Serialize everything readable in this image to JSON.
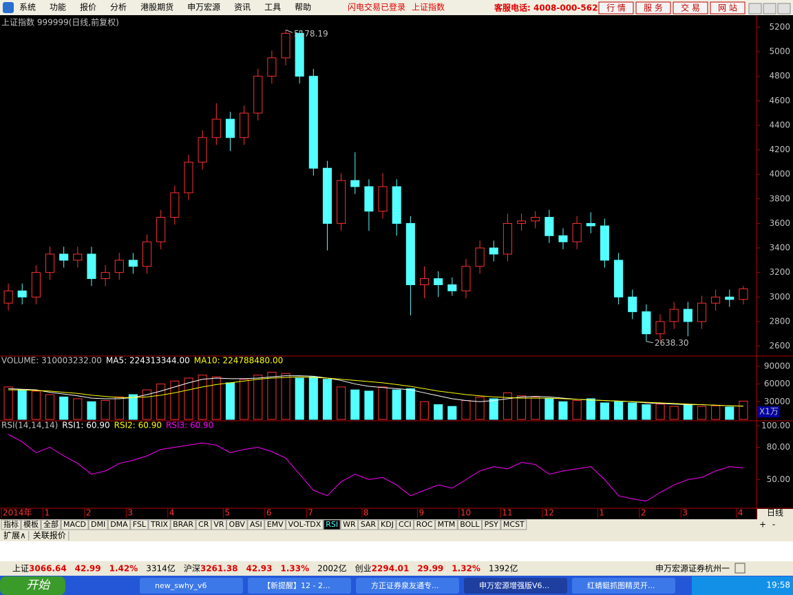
{
  "menu": {
    "items": [
      "系统",
      "功能",
      "报价",
      "分析",
      "港股期货",
      "申万宏源",
      "资讯",
      "工具",
      "帮助"
    ],
    "status": "闪电交易已登录",
    "current": "上证指数",
    "hotline": "客服电话: 4008-000-562",
    "buttons": [
      "行 情",
      "服 务",
      "交 易",
      "网 站"
    ]
  },
  "chart_data": [
    {
      "type": "candlestick",
      "title": "上证指数 999999(日线,前复权)",
      "up_color": "#ff3232",
      "down_color": "#54ffff",
      "open": [
        2950,
        3050,
        3000,
        3200,
        3350,
        3300,
        3350,
        3150,
        3200,
        3300,
        3250,
        3450,
        3650,
        3850,
        4100,
        4300,
        4450,
        4300,
        4500,
        4800,
        4950,
        5150,
        4800,
        4050,
        3600,
        3950,
        3900,
        3700,
        3900,
        3600,
        3100,
        3150,
        3100,
        3050,
        3250,
        3400,
        3350,
        3600,
        3620,
        3650,
        3500,
        3450,
        3600,
        3580,
        3300,
        3000,
        2880,
        2700,
        2800,
        2900,
        2800,
        2950,
        3000,
        2980
      ],
      "high": [
        3110,
        3110,
        3260,
        3410,
        3410,
        3410,
        3410,
        3260,
        3360,
        3360,
        3510,
        3710,
        3910,
        4160,
        4360,
        4580,
        4510,
        4560,
        4860,
        5010,
        5178.19,
        5176,
        4860,
        4110,
        4010,
        4180,
        3960,
        4010,
        3960,
        3660,
        3250,
        3210,
        3160,
        3310,
        3460,
        3460,
        3680,
        3680,
        3700,
        3710,
        3560,
        3660,
        3690,
        3640,
        3360,
        3060,
        2940,
        2860,
        2960,
        2960,
        3010,
        3060,
        3060,
        3090
      ],
      "low": [
        2890,
        2940,
        2940,
        3140,
        3240,
        3240,
        3090,
        3090,
        3140,
        3190,
        3190,
        3390,
        3590,
        3790,
        4040,
        4240,
        4190,
        4240,
        4440,
        4740,
        4890,
        4740,
        3990,
        3380,
        3540,
        3840,
        3540,
        3640,
        3500,
        2850,
        2990,
        3000,
        3010,
        2990,
        3190,
        3290,
        3290,
        3540,
        3560,
        3440,
        3390,
        3390,
        3520,
        3240,
        2940,
        2820,
        2638.3,
        2640,
        2740,
        2680,
        2740,
        2890,
        2920,
        2940
      ],
      "close": [
        3050,
        3000,
        3200,
        3350,
        3300,
        3350,
        3150,
        3200,
        3300,
        3250,
        3450,
        3650,
        3850,
        4100,
        4300,
        4450,
        4300,
        4500,
        4800,
        4950,
        5150,
        4800,
        4050,
        3600,
        3950,
        3900,
        3700,
        3900,
        3600,
        3100,
        3150,
        3100,
        3050,
        3250,
        3400,
        3350,
        3600,
        3620,
        3650,
        3500,
        3450,
        3600,
        3580,
        3300,
        3000,
        2880,
        2700,
        2800,
        2900,
        2800,
        2950,
        3000,
        2980,
        3066.64
      ],
      "high_label": "5178.19",
      "low_label": "2638.30",
      "xlim": [
        0,
        54
      ],
      "xticks": [
        {
          "value": 0,
          "label": "2014年"
        },
        {
          "value": 3,
          "label": "1"
        },
        {
          "value": 6,
          "label": "2"
        },
        {
          "value": 9,
          "label": "3"
        },
        {
          "value": 12,
          "label": "4"
        },
        {
          "value": 16,
          "label": "5"
        },
        {
          "value": 19,
          "label": "6"
        },
        {
          "value": 22,
          "label": "7"
        },
        {
          "value": 26,
          "label": "8"
        },
        {
          "value": 30,
          "label": "9"
        },
        {
          "value": 33,
          "label": "10"
        },
        {
          "value": 36,
          "label": "11"
        },
        {
          "value": 39,
          "label": "12"
        },
        {
          "value": 43,
          "label": "1"
        },
        {
          "value": 46,
          "label": "2"
        },
        {
          "value": 49,
          "label": "3"
        },
        {
          "value": 53,
          "label": "4"
        }
      ],
      "ylim": [
        2530,
        5270
      ],
      "yticks": [
        2600,
        2800,
        3000,
        3200,
        3400,
        3600,
        3800,
        4000,
        4200,
        4400,
        4600,
        4800,
        5000,
        5200
      ]
    },
    {
      "type": "bar",
      "y_unit": "X1万",
      "ylim": [
        0,
        105000
      ],
      "yticks": [
        30000,
        60000,
        90000
      ],
      "series": [
        {
          "label": "VOLUME: 310003232.00",
          "color": "#c0c0c0",
          "values": [
            55000,
            50000,
            48000,
            42000,
            38000,
            35000,
            30000,
            32000,
            38000,
            42000,
            50000,
            60000,
            65000,
            70000,
            75000,
            72000,
            62000,
            68000,
            75000,
            80000,
            78000,
            70000,
            72000,
            68000,
            55000,
            50000,
            48000,
            55000,
            50000,
            52000,
            30000,
            25000,
            22000,
            32000,
            38000,
            35000,
            45000,
            40000,
            38000,
            35000,
            30000,
            32000,
            35000,
            28000,
            30000,
            28000,
            25000,
            26000,
            22000,
            24000,
            22000,
            23000,
            21000,
            31000.3232
          ]
        },
        {
          "label": "MA5: 224313344.00",
          "color": "#ffffff",
          "values": [
            52000,
            51000,
            50000,
            46000,
            43000,
            40000,
            36000,
            35000,
            35000,
            37000,
            42000,
            48000,
            55000,
            62000,
            68000,
            70000,
            69000,
            69000,
            70000,
            72000,
            74000,
            74000,
            73000,
            70000,
            66000,
            60000,
            56000,
            54000,
            52000,
            50000,
            45000,
            40000,
            35000,
            32000,
            30000,
            32000,
            35000,
            38000,
            39000,
            38000,
            36000,
            34000,
            33000,
            32000,
            31000,
            30000,
            28000,
            27000,
            26000,
            25000,
            25000,
            24000,
            23000,
            22431.3344
          ]
        },
        {
          "label": "MA10: 224788480.00",
          "color": "#ffff00",
          "values": [
            50000,
            50000,
            49000,
            48000,
            46000,
            44000,
            41000,
            39000,
            37000,
            37000,
            38000,
            41000,
            45000,
            50000,
            55000,
            59000,
            62000,
            65000,
            68000,
            70000,
            71000,
            72000,
            71000,
            70000,
            68000,
            66000,
            64000,
            62000,
            59000,
            56000,
            52000,
            48000,
            45000,
            42000,
            40000,
            38000,
            37000,
            36000,
            36000,
            36000,
            35000,
            34000,
            33000,
            32000,
            31000,
            30000,
            29000,
            28000,
            27000,
            26000,
            25000,
            24000,
            23000,
            22478.848
          ]
        }
      ]
    },
    {
      "type": "line",
      "title": "RSI(14,14,14)",
      "legend_labels": [
        {
          "text": "RSI1: 60.90",
          "color": "#ffffff"
        },
        {
          "text": "RSI2: 60.90",
          "color": "#ffff00"
        },
        {
          "text": "RSI3: 60.90",
          "color": "#ff00ff"
        }
      ],
      "color": "#ff00ff",
      "ylim": [
        24,
        104
      ],
      "yticks": [
        {
          "value": 50,
          "label": "50.00"
        },
        {
          "value": 80,
          "label": "80.00"
        },
        {
          "value": 100,
          "label": "100.00"
        }
      ],
      "values": [
        92,
        85,
        75,
        80,
        72,
        65,
        55,
        58,
        65,
        68,
        72,
        78,
        80,
        82,
        84,
        82,
        75,
        78,
        80,
        76,
        70,
        55,
        40,
        35,
        48,
        55,
        50,
        52,
        45,
        35,
        40,
        45,
        42,
        50,
        58,
        62,
        60,
        66,
        64,
        55,
        58,
        60,
        62,
        50,
        35,
        32,
        30,
        38,
        45,
        50,
        52,
        58,
        62,
        60.9
      ]
    }
  ],
  "period_label": "日线",
  "zoom_buttons": [
    "+",
    "-"
  ],
  "indicator_tabs": [
    "指标",
    "模板",
    "全部",
    "MACD",
    "DMI",
    "DMA",
    "FSL",
    "TRIX",
    "BRAR",
    "CR",
    "VR",
    "OBV",
    "ASI",
    "EMV",
    "VOL-TDX",
    "RSI",
    "WR",
    "SAR",
    "KDJ",
    "CCI",
    "ROC",
    "MTM",
    "BOLL",
    "PSY",
    "MCST"
  ],
  "sub_tabs": [
    "扩展∧",
    "关联报价"
  ],
  "status_bar": {
    "indices": [
      {
        "name": "上证",
        "price": "3066.64",
        "change": "42.99",
        "pct": "1.42%",
        "amount": "3314亿"
      },
      {
        "name": "沪深",
        "price": "3261.38",
        "change": "42.93",
        "pct": "1.33%",
        "amount": "2002亿"
      },
      {
        "name": "创业",
        "price": "2294.01",
        "change": "29.99",
        "pct": "1.32%",
        "amount": "1392亿"
      }
    ],
    "broker": "申万宏源证券杭州一"
  },
  "taskbar": {
    "start": "开始",
    "tasks": [
      "new_swhy_v6",
      "【新提醒】12 - 2...",
      "方正证券泉友通专...",
      "申万宏源增强版V6...",
      "红蜻蜓抓图精灵开..."
    ],
    "clock": "19:58"
  }
}
